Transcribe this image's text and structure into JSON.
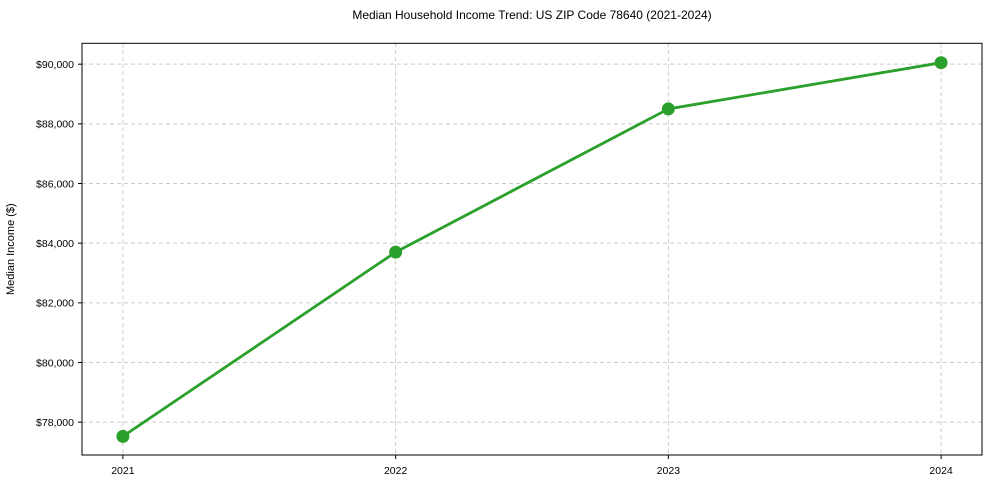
{
  "figure": {
    "title": "Median Household Income Trend: US ZIP Code 78640 (2021-2024)"
  },
  "chart_data": {
    "type": "line",
    "title": "Median Household Income Trend: US ZIP Code 78640 (2021-2024)",
    "xlabel": "",
    "ylabel": "Median Income ($)",
    "x": [
      2021,
      2022,
      2023,
      2024
    ],
    "x_tick_labels": [
      "2021",
      "2022",
      "2023",
      "2024"
    ],
    "values": [
      77525,
      83700,
      88500,
      90050
    ],
    "y_ticks": [
      78000,
      80000,
      82000,
      84000,
      86000,
      88000,
      90000
    ],
    "y_tick_prefix": "$",
    "ylim": [
      76900,
      90700
    ],
    "xlim": [
      2020.85,
      2024.15
    ],
    "grid": true,
    "grid_style": "dashed",
    "grid_color": "#cccccc",
    "line_color": "#2ca02c",
    "marker": "circle",
    "legend": false,
    "background_color": "#ffffff",
    "border_color": "#000000"
  }
}
